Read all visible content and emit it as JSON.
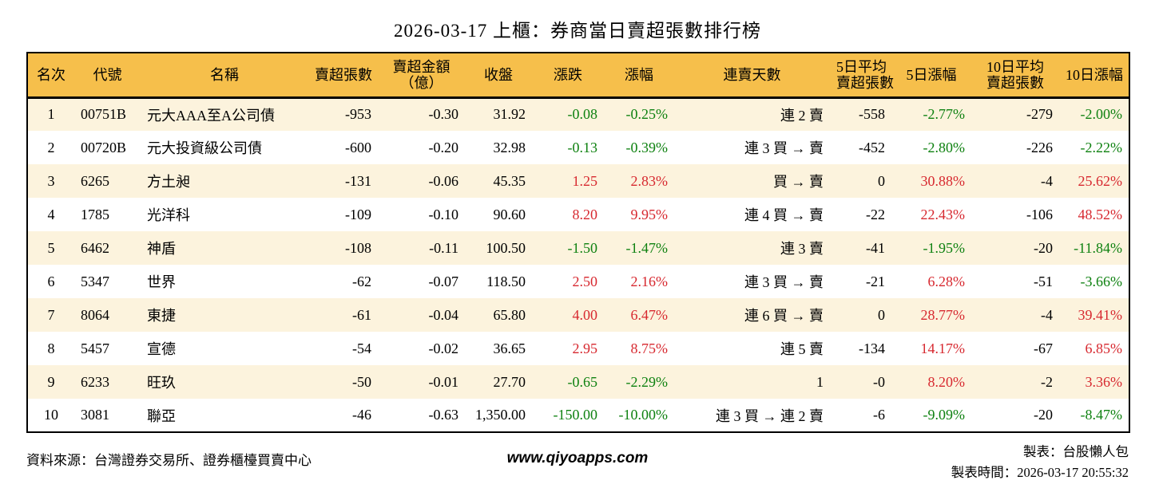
{
  "title": "2026-03-17 上櫃：券商當日賣超張數排行榜",
  "chart_data": {
    "type": "table",
    "title": "2026-03-17 上櫃：券商當日賣超張數排行榜",
    "columns": [
      {
        "key": "rank",
        "label": "名次",
        "align": "center",
        "colored": false
      },
      {
        "key": "code",
        "label": "代號",
        "align": "left",
        "colored": false
      },
      {
        "key": "name",
        "label": "名稱",
        "align": "left",
        "colored": false
      },
      {
        "key": "sell_volume",
        "label": "賣超張數",
        "align": "right",
        "colored": false
      },
      {
        "key": "sell_amount",
        "label": "賣超金額",
        "label2": "（億）",
        "align": "right",
        "colored": false
      },
      {
        "key": "close",
        "label": "收盤",
        "align": "right",
        "colored": false
      },
      {
        "key": "change",
        "label": "漲跌",
        "align": "right",
        "colored": true
      },
      {
        "key": "change_pct",
        "label": "漲幅",
        "align": "right",
        "colored": true
      },
      {
        "key": "streak",
        "label": "連賣天數",
        "align": "right",
        "colored": false
      },
      {
        "key": "avg5",
        "label": "5日平均",
        "label2": "賣超張數",
        "align": "right",
        "colored": false
      },
      {
        "key": "pct5",
        "label": "5日漲幅",
        "align": "right",
        "colored": true
      },
      {
        "key": "avg10",
        "label": "10日平均",
        "label2": "賣超張數",
        "align": "right",
        "colored": false
      },
      {
        "key": "pct10",
        "label": "10日漲幅",
        "align": "right",
        "colored": true
      }
    ],
    "rows": [
      [
        "1",
        "00751B",
        "元大AAA至A公司債",
        "-953",
        "-0.30",
        "31.92",
        "-0.08",
        "-0.25%",
        "連 2 賣",
        "-558",
        "-2.77%",
        "-279",
        "-2.00%"
      ],
      [
        "2",
        "00720B",
        "元大投資級公司債",
        "-600",
        "-0.20",
        "32.98",
        "-0.13",
        "-0.39%",
        "連 3 買 → 賣",
        "-452",
        "-2.80%",
        "-226",
        "-2.22%"
      ],
      [
        "3",
        "6265",
        "方土昶",
        "-131",
        "-0.06",
        "45.35",
        "1.25",
        "2.83%",
        "買 → 賣",
        "0",
        "30.88%",
        "-4",
        "25.62%"
      ],
      [
        "4",
        "1785",
        "光洋科",
        "-109",
        "-0.10",
        "90.60",
        "8.20",
        "9.95%",
        "連 4 買 → 賣",
        "-22",
        "22.43%",
        "-106",
        "48.52%"
      ],
      [
        "5",
        "6462",
        "神盾",
        "-108",
        "-0.11",
        "100.50",
        "-1.50",
        "-1.47%",
        "連 3 賣",
        "-41",
        "-1.95%",
        "-20",
        "-11.84%"
      ],
      [
        "6",
        "5347",
        "世界",
        "-62",
        "-0.07",
        "118.50",
        "2.50",
        "2.16%",
        "連 3 買 → 賣",
        "-21",
        "6.28%",
        "-51",
        "-3.66%"
      ],
      [
        "7",
        "8064",
        "東捷",
        "-61",
        "-0.04",
        "65.80",
        "4.00",
        "6.47%",
        "連 6 買 → 賣",
        "0",
        "28.77%",
        "-4",
        "39.41%"
      ],
      [
        "8",
        "5457",
        "宣德",
        "-54",
        "-0.02",
        "36.65",
        "2.95",
        "8.75%",
        "連 5 賣",
        "-134",
        "14.17%",
        "-67",
        "6.85%"
      ],
      [
        "9",
        "6233",
        "旺玖",
        "-50",
        "-0.01",
        "27.70",
        "-0.65",
        "-2.29%",
        "1",
        "-0",
        "8.20%",
        "-2",
        "3.36%"
      ],
      [
        "10",
        "3081",
        "聯亞",
        "-46",
        "-0.63",
        "1,350.00",
        "-150.00",
        "-10.00%",
        "連 3 買 → 連 2 賣",
        "-6",
        "-9.09%",
        "-20",
        "-8.47%"
      ]
    ]
  },
  "footer": {
    "source": "資料來源：台灣證券交易所、證券櫃檯買賣中心",
    "website": "www.qiyoapps.com",
    "author": "製表：台股懶人包",
    "generated": "製表時間：2026-03-17 20:55:32"
  },
  "colors": {
    "header_bg": "#f6bf4b",
    "row_alt_bg": "#fcf3dd",
    "row_bg": "#ffffff",
    "positive_red": "#d7282f",
    "negative_green": "#0e8110",
    "border": "#000000"
  }
}
